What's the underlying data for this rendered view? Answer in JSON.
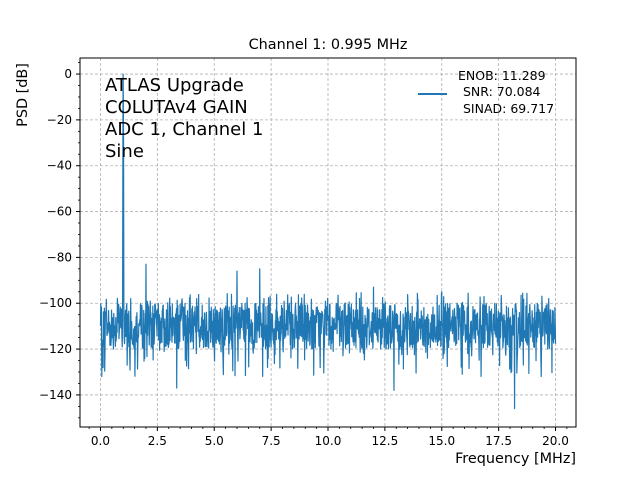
{
  "chart_data": {
    "type": "line",
    "title": "Channel 1: 0.995 MHz",
    "xlabel": "Frequency [MHz]",
    "ylabel": "PSD [dB]",
    "xlim": [
      -0.9,
      20.9
    ],
    "ylim": [
      -154,
      7
    ],
    "xticks": [
      0.0,
      2.5,
      5.0,
      7.5,
      10.0,
      12.5,
      15.0,
      17.5,
      20.0
    ],
    "xtick_labels": [
      "0.0",
      "2.5",
      "5.0",
      "7.5",
      "10.0",
      "12.5",
      "15.0",
      "17.5",
      "20.0"
    ],
    "yticks": [
      0,
      -20,
      -40,
      -60,
      -80,
      -100,
      -120,
      -140
    ],
    "ytick_labels": [
      "0",
      "−20",
      "−40",
      "−60",
      "−80",
      "−100",
      "−120",
      "−140"
    ],
    "grid": true,
    "legend_position": "top-right",
    "annotation_lines": [
      "ATLAS Upgrade",
      "COLUTAv4 GAIN",
      "ADC 1, Channel 1",
      "Sine"
    ],
    "series": [
      {
        "legend_lines": [
          "ENOB: 11.289",
          "SNR: 70.084",
          "SINAD: 69.717"
        ],
        "color": "#1f77b4",
        "noise_floor": {
          "x_range": [
            0.0,
            20.0
          ],
          "mean": -110,
          "band": [
            -120,
            -100
          ],
          "min": -146
        },
        "peaks": [
          {
            "x": 0.995,
            "y": 0
          },
          {
            "x": 2.0,
            "y": -83
          },
          {
            "x": 6.0,
            "y": -86
          },
          {
            "x": 7.0,
            "y": -85
          },
          {
            "x": 12.0,
            "y": -93
          },
          {
            "x": 15.0,
            "y": -95
          }
        ],
        "dips": [
          {
            "x": 3.35,
            "y": -137
          },
          {
            "x": 12.9,
            "y": -138
          },
          {
            "x": 18.2,
            "y": -146
          }
        ]
      }
    ]
  }
}
